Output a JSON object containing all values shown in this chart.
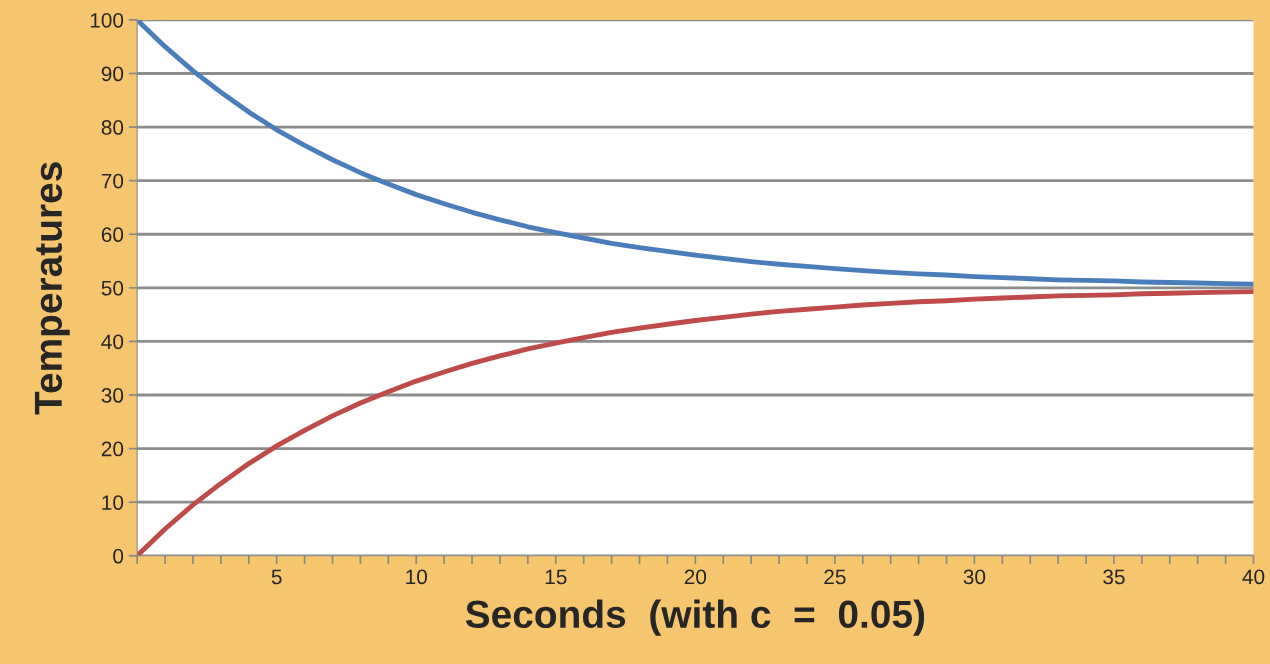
{
  "chart_data": {
    "type": "line",
    "xlabel": "Seconds  (with c  =  0.05)",
    "ylabel": "Temperatures",
    "x": [
      0,
      1,
      2,
      3,
      4,
      5,
      6,
      7,
      8,
      9,
      10,
      11,
      12,
      13,
      14,
      15,
      16,
      17,
      18,
      19,
      20,
      21,
      22,
      23,
      24,
      25,
      26,
      27,
      28,
      29,
      30,
      31,
      32,
      33,
      34,
      35,
      36,
      37,
      38,
      39,
      40
    ],
    "series": [
      {
        "color": "#4a7ebb",
        "values": [
          100,
          95,
          90.5,
          86.5,
          82.8,
          79.5,
          76.6,
          73.9,
          71.5,
          69.4,
          67.4,
          65.7,
          64.1,
          62.7,
          61.4,
          60.3,
          59.3,
          58.3,
          57.5,
          56.8,
          56.1,
          55.5,
          54.9,
          54.4,
          54.0,
          53.6,
          53.2,
          52.9,
          52.6,
          52.4,
          52.1,
          51.9,
          51.7,
          51.5,
          51.4,
          51.3,
          51.1,
          51.0,
          50.9,
          50.8,
          50.7
        ]
      },
      {
        "color": "#be4b48",
        "values": [
          0,
          5,
          9.5,
          13.5,
          17.2,
          20.5,
          23.4,
          26.1,
          28.5,
          30.6,
          32.6,
          34.3,
          35.9,
          37.3,
          38.6,
          39.7,
          40.7,
          41.7,
          42.5,
          43.2,
          43.9,
          44.5,
          45.1,
          45.6,
          46.0,
          46.4,
          46.8,
          47.1,
          47.4,
          47.6,
          47.9,
          48.1,
          48.3,
          48.5,
          48.6,
          48.7,
          48.9,
          49.0,
          49.1,
          49.2,
          49.3
        ]
      }
    ],
    "xlim": [
      0,
      40
    ],
    "ylim": [
      0,
      100
    ],
    "xticks": [
      {
        "value": 0,
        "label": null
      },
      {
        "value": 1,
        "label": null
      },
      {
        "value": 2,
        "label": null
      },
      {
        "value": 3,
        "label": null
      },
      {
        "value": 4,
        "label": null
      },
      5,
      {
        "value": 6,
        "label": null
      },
      {
        "value": 7,
        "label": null
      },
      {
        "value": 8,
        "label": null
      },
      {
        "value": 9,
        "label": null
      },
      10,
      {
        "value": 11,
        "label": null
      },
      {
        "value": 12,
        "label": null
      },
      {
        "value": 13,
        "label": null
      },
      {
        "value": 14,
        "label": null
      },
      15,
      {
        "value": 16,
        "label": null
      },
      {
        "value": 17,
        "label": null
      },
      {
        "value": 18,
        "label": null
      },
      {
        "value": 19,
        "label": null
      },
      20,
      {
        "value": 21,
        "label": null
      },
      {
        "value": 22,
        "label": null
      },
      {
        "value": 23,
        "label": null
      },
      {
        "value": 24,
        "label": null
      },
      25,
      {
        "value": 26,
        "label": null
      },
      {
        "value": 27,
        "label": null
      },
      {
        "value": 28,
        "label": null
      },
      {
        "value": 29,
        "label": null
      },
      30,
      {
        "value": 31,
        "label": null
      },
      {
        "value": 32,
        "label": null
      },
      {
        "value": 33,
        "label": null
      },
      {
        "value": 34,
        "label": null
      },
      35,
      {
        "value": 36,
        "label": null
      },
      {
        "value": 37,
        "label": null
      },
      {
        "value": 38,
        "label": null
      },
      {
        "value": 39,
        "label": null
      },
      40
    ],
    "yticks": [
      0,
      10,
      20,
      30,
      40,
      50,
      60,
      70,
      80,
      90,
      100
    ],
    "grid": "y",
    "legend": false,
    "marker": "none",
    "line_style": "solid"
  }
}
